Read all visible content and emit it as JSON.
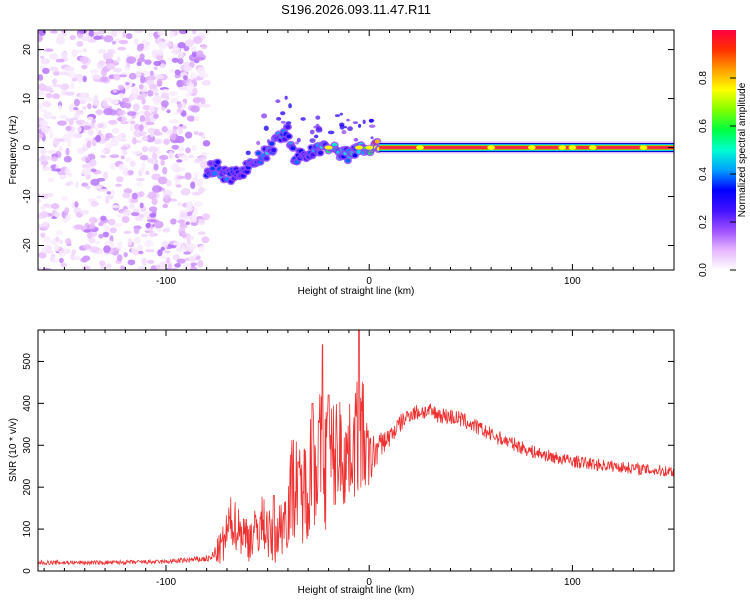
{
  "title": "S196.2026.093.11.47.R11",
  "chart_data": [
    {
      "type": "heatmap",
      "name": "spectrogram",
      "xlabel": "Height of straight line (km)",
      "ylabel": "Frequency (Hz)",
      "xlim": [
        -163,
        150
      ],
      "ylim": [
        -25,
        24
      ],
      "xticks": [
        -100,
        0,
        100
      ],
      "yticks": [
        -20,
        -10,
        0,
        10,
        20
      ],
      "colorbar": {
        "label": "Normalized spectral amplitude",
        "range": [
          0.0,
          1.0
        ],
        "ticks": [
          0.0,
          0.2,
          0.4,
          0.6,
          0.8
        ],
        "tick_labels": [
          "0.0",
          "0.2",
          "0.4",
          "0.6",
          "0.8"
        ],
        "colors": [
          "#ffffff",
          "#e6b5ff",
          "#9b4dff",
          "#4010ff",
          "#0000ff",
          "#00a0ff",
          "#00ffd0",
          "#00ff40",
          "#80ff00",
          "#ffff00",
          "#ffa000",
          "#ff3000",
          "#ff0040"
        ]
      },
      "noise_region": {
        "x_range": [
          -163,
          -80
        ],
        "amplitude_range": [
          0.02,
          0.15
        ]
      },
      "signal_track": [
        {
          "x": -80,
          "freq": -4.5,
          "amp": 0.3
        },
        {
          "x": -75,
          "freq": -4.0,
          "amp": 0.4
        },
        {
          "x": -70,
          "freq": -6.0,
          "amp": 0.35
        },
        {
          "x": -65,
          "freq": -5.5,
          "amp": 0.3
        },
        {
          "x": -60,
          "freq": -4.0,
          "amp": 0.35
        },
        {
          "x": -55,
          "freq": -2.5,
          "amp": 0.35
        },
        {
          "x": -50,
          "freq": -1.0,
          "amp": 0.4
        },
        {
          "x": -45,
          "freq": 1.5,
          "amp": 0.4
        },
        {
          "x": -40,
          "freq": 3.5,
          "amp": 0.4
        },
        {
          "x": -37,
          "freq": -2.0,
          "amp": 0.35
        },
        {
          "x": -30,
          "freq": -1.5,
          "amp": 0.35
        },
        {
          "x": -25,
          "freq": 0.0,
          "amp": 0.4
        },
        {
          "x": -20,
          "freq": 0.0,
          "amp": 0.5
        },
        {
          "x": -15,
          "freq": -1.0,
          "amp": 0.45
        },
        {
          "x": -10,
          "freq": -1.5,
          "amp": 0.45
        },
        {
          "x": -5,
          "freq": 0.0,
          "amp": 0.55
        },
        {
          "x": 0,
          "freq": 0.0,
          "amp": 0.6
        },
        {
          "x": 5,
          "freq": 0.0,
          "amp": 0.95
        },
        {
          "x": 150,
          "freq": 0.0,
          "amp": 0.95
        }
      ]
    },
    {
      "type": "line",
      "name": "snr",
      "xlabel": "Height of straight line (km)",
      "ylabel": "SNR (10 * v/v)",
      "xlim": [
        -163,
        150
      ],
      "ylim": [
        0,
        575
      ],
      "xticks": [
        -100,
        0,
        100
      ],
      "yticks": [
        0,
        100,
        200,
        300,
        400,
        500
      ],
      "series": [
        {
          "name": "SNR",
          "color": "#ee3030",
          "x": [
            -163,
            -130,
            -100,
            -78,
            -72,
            -68,
            -64,
            -60,
            -56,
            -52,
            -48,
            -44,
            -40,
            -37,
            -34,
            -31,
            -28,
            -25,
            -22,
            -20,
            -18,
            -15,
            -12,
            -9,
            -6,
            -4,
            -2,
            0,
            5,
            10,
            15,
            20,
            25,
            30,
            35,
            40,
            45,
            50,
            55,
            60,
            70,
            80,
            90,
            100,
            110,
            120,
            130,
            140,
            150
          ],
          "y": [
            20,
            20,
            22,
            30,
            60,
            120,
            100,
            80,
            90,
            120,
            70,
            100,
            150,
            220,
            180,
            200,
            260,
            280,
            250,
            270,
            260,
            300,
            270,
            290,
            320,
            330,
            300,
            260,
            300,
            320,
            350,
            375,
            380,
            380,
            372,
            368,
            362,
            350,
            338,
            325,
            305,
            285,
            272,
            262,
            255,
            250,
            245,
            240,
            238
          ],
          "amplitude": [
            5,
            5,
            5,
            8,
            50,
            60,
            60,
            60,
            60,
            70,
            60,
            70,
            100,
            140,
            120,
            130,
            160,
            170,
            160,
            170,
            150,
            130,
            130,
            110,
            150,
            150,
            120,
            70,
            30,
            25,
            22,
            20,
            20,
            20,
            20,
            20,
            20,
            18,
            18,
            18,
            16,
            16,
            15,
            15,
            15,
            14,
            14,
            14,
            14
          ],
          "peaks": [
            {
              "x": -47,
              "y": 180
            },
            {
              "x": -35,
              "y": 260
            },
            {
              "x": -28,
              "y": 400
            },
            {
              "x": -23,
              "y": 540
            },
            {
              "x": -20,
              "y": 420
            },
            {
              "x": -5,
              "y": 575
            }
          ]
        }
      ]
    }
  ]
}
